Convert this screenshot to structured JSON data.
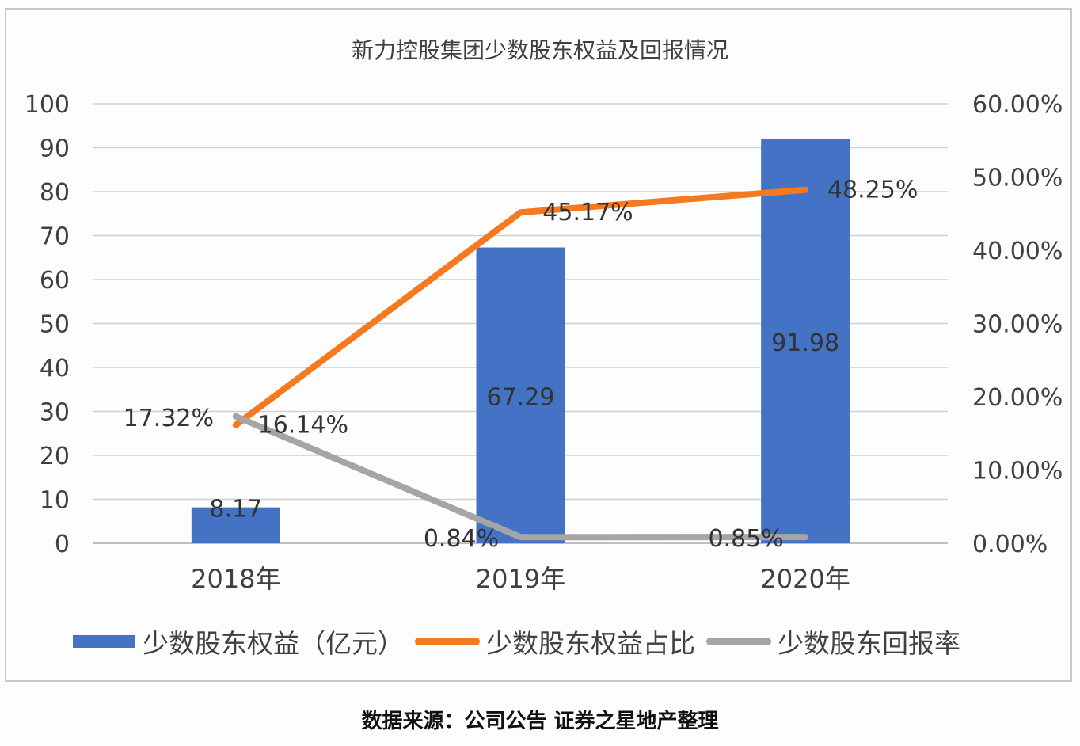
{
  "chart_data": {
    "type": "bar",
    "title": "新力控股集团少数股东权益及回报情况",
    "categories": [
      "2018年",
      "2019年",
      "2020年"
    ],
    "series": [
      {
        "name": "少数股东权益（亿元）",
        "type": "bar",
        "axis": "left",
        "color": "#4472c4",
        "values": [
          8.17,
          67.29,
          91.98
        ],
        "labels": [
          "8.17",
          "67.29",
          "91.98"
        ]
      },
      {
        "name": "少数股东权益占比",
        "type": "line",
        "axis": "right",
        "color": "#f57a1f",
        "values": [
          16.14,
          45.17,
          48.25
        ],
        "labels": [
          "16.14%",
          "45.17%",
          "48.25%"
        ]
      },
      {
        "name": "少数股东回报率",
        "type": "line",
        "axis": "right",
        "color": "#a5a5a5",
        "values": [
          17.32,
          0.84,
          0.85
        ],
        "labels": [
          "17.32%",
          "0.84%",
          "0.85%"
        ]
      }
    ],
    "y_left": {
      "min": 0,
      "max": 100,
      "step": 10,
      "ticks": [
        "0",
        "10",
        "20",
        "30",
        "40",
        "50",
        "60",
        "70",
        "80",
        "90",
        "100"
      ]
    },
    "y_right": {
      "min": 0,
      "max": 60,
      "step": 10,
      "ticks": [
        "0.00%",
        "10.00%",
        "20.00%",
        "30.00%",
        "40.00%",
        "50.00%",
        "60.00%"
      ]
    },
    "xlabel": "",
    "ylabel": "",
    "grid": true,
    "legend_position": "bottom"
  },
  "header": {
    "title": "新力控股集团少数股东权益及回报情况"
  },
  "legend": {
    "items": [
      {
        "label": "少数股东权益（亿元）",
        "color": "#4472c4"
      },
      {
        "label": "少数股东权益占比",
        "color": "#f57a1f"
      },
      {
        "label": "少数股东回报率",
        "color": "#a5a5a5"
      }
    ]
  },
  "footer": {
    "source": "数据来源：公司公告  证券之星地产整理"
  }
}
